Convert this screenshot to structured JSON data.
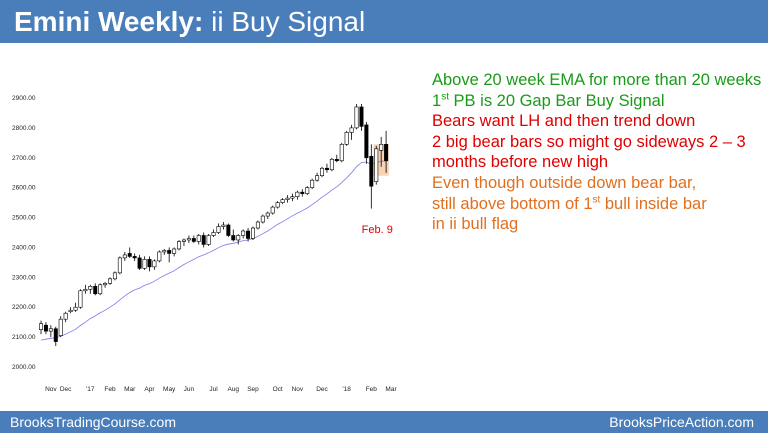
{
  "title": {
    "bold": "Emini Weekly:",
    "rest": "ii Buy Signal"
  },
  "colors": {
    "banner": "#4a7ebb",
    "green_text": "#1a9a1a",
    "red_text": "#e00000",
    "orange_text": "#e07020",
    "ema_line": "#7b7bf0",
    "bull_candle": "#ffffff",
    "bear_candle": "#000000",
    "highlight_box": "#f6d2b6"
  },
  "notes": [
    {
      "parts": [
        "Above 20 week EMA for more than 20 weeks"
      ],
      "color": "green"
    },
    {
      "parts": [
        "1",
        "st",
        " PB is 20 Gap Bar Buy Signal"
      ],
      "color": "green"
    },
    {
      "parts": [
        "Bears want LH and then trend down"
      ],
      "color": "red"
    },
    {
      "parts": [
        "2 big bear bars so might go sideways 2 – 3"
      ],
      "color": "red"
    },
    {
      "parts": [
        "months before new high"
      ],
      "color": "red"
    },
    {
      "parts": [
        "Even though outside down bear bar,"
      ],
      "color": "orange"
    },
    {
      "parts": [
        "still above bottom of 1",
        "st",
        " bull inside bar"
      ],
      "color": "orange"
    },
    {
      "parts": [
        "in ii bull flag"
      ],
      "color": "orange"
    }
  ],
  "footer": {
    "left": "BrooksTradingCourse.com",
    "right": "BrooksPriceAction.com"
  },
  "chart_data": {
    "type": "candlestick",
    "title": "",
    "xlabel": "",
    "ylabel": "",
    "ylim": [
      2000,
      2900
    ],
    "yticks": [
      "2000.00",
      "2100.00",
      "2200.00",
      "2300.00",
      "2400.00",
      "2500.00",
      "2600.00",
      "2700.00",
      "2800.00",
      "2900.00"
    ],
    "xticks": [
      {
        "label": "Nov",
        "index": 2
      },
      {
        "label": "Dec",
        "index": 5
      },
      {
        "label": "'17",
        "index": 10
      },
      {
        "label": "Feb",
        "index": 14
      },
      {
        "label": "Mar",
        "index": 18
      },
      {
        "label": "Apr",
        "index": 22
      },
      {
        "label": "May",
        "index": 26
      },
      {
        "label": "Jun",
        "index": 30
      },
      {
        "label": "Jul",
        "index": 35
      },
      {
        "label": "Aug",
        "index": 39
      },
      {
        "label": "Sep",
        "index": 43
      },
      {
        "label": "Oct",
        "index": 48
      },
      {
        "label": "Nov",
        "index": 52
      },
      {
        "label": "Dec",
        "index": 57
      },
      {
        "label": "'18",
        "index": 62
      },
      {
        "label": "Feb",
        "index": 67
      },
      {
        "label": "Mar",
        "index": 71
      }
    ],
    "grid": false,
    "legend": "none",
    "annotation": {
      "text": "Feb. 9",
      "index": 68
    },
    "highlight": {
      "from_index": 68,
      "to_index": 70,
      "price_top": 2745,
      "price_bottom": 2640
    },
    "candles": [
      {
        "o": 2125,
        "h": 2155,
        "l": 2110,
        "c": 2145
      },
      {
        "o": 2140,
        "h": 2150,
        "l": 2110,
        "c": 2120
      },
      {
        "o": 2120,
        "h": 2140,
        "l": 2100,
        "c": 2128
      },
      {
        "o": 2128,
        "h": 2135,
        "l": 2070,
        "c": 2085
      },
      {
        "o": 2105,
        "h": 2170,
        "l": 2100,
        "c": 2160
      },
      {
        "o": 2160,
        "h": 2185,
        "l": 2150,
        "c": 2180
      },
      {
        "o": 2185,
        "h": 2200,
        "l": 2180,
        "c": 2190
      },
      {
        "o": 2190,
        "h": 2215,
        "l": 2185,
        "c": 2200
      },
      {
        "o": 2200,
        "h": 2260,
        "l": 2195,
        "c": 2255
      },
      {
        "o": 2255,
        "h": 2275,
        "l": 2245,
        "c": 2260
      },
      {
        "o": 2260,
        "h": 2275,
        "l": 2245,
        "c": 2270
      },
      {
        "o": 2270,
        "h": 2280,
        "l": 2240,
        "c": 2245
      },
      {
        "o": 2245,
        "h": 2280,
        "l": 2240,
        "c": 2275
      },
      {
        "o": 2275,
        "h": 2285,
        "l": 2265,
        "c": 2280
      },
      {
        "o": 2280,
        "h": 2300,
        "l": 2275,
        "c": 2295
      },
      {
        "o": 2295,
        "h": 2320,
        "l": 2290,
        "c": 2315
      },
      {
        "o": 2315,
        "h": 2370,
        "l": 2310,
        "c": 2365
      },
      {
        "o": 2365,
        "h": 2385,
        "l": 2355,
        "c": 2375
      },
      {
        "o": 2380,
        "h": 2400,
        "l": 2365,
        "c": 2370
      },
      {
        "o": 2370,
        "h": 2380,
        "l": 2355,
        "c": 2365
      },
      {
        "o": 2365,
        "h": 2375,
        "l": 2325,
        "c": 2330
      },
      {
        "o": 2330,
        "h": 2370,
        "l": 2325,
        "c": 2360
      },
      {
        "o": 2360,
        "h": 2370,
        "l": 2320,
        "c": 2335
      },
      {
        "o": 2335,
        "h": 2360,
        "l": 2325,
        "c": 2355
      },
      {
        "o": 2355,
        "h": 2390,
        "l": 2350,
        "c": 2385
      },
      {
        "o": 2385,
        "h": 2395,
        "l": 2375,
        "c": 2390
      },
      {
        "o": 2390,
        "h": 2400,
        "l": 2350,
        "c": 2380
      },
      {
        "o": 2380,
        "h": 2400,
        "l": 2370,
        "c": 2395
      },
      {
        "o": 2395,
        "h": 2425,
        "l": 2390,
        "c": 2420
      },
      {
        "o": 2420,
        "h": 2430,
        "l": 2405,
        "c": 2425
      },
      {
        "o": 2425,
        "h": 2440,
        "l": 2415,
        "c": 2430
      },
      {
        "o": 2430,
        "h": 2440,
        "l": 2415,
        "c": 2420
      },
      {
        "o": 2420,
        "h": 2445,
        "l": 2410,
        "c": 2440
      },
      {
        "o": 2440,
        "h": 2450,
        "l": 2400,
        "c": 2410
      },
      {
        "o": 2410,
        "h": 2445,
        "l": 2405,
        "c": 2440
      },
      {
        "o": 2440,
        "h": 2460,
        "l": 2435,
        "c": 2450
      },
      {
        "o": 2450,
        "h": 2480,
        "l": 2445,
        "c": 2470
      },
      {
        "o": 2470,
        "h": 2485,
        "l": 2460,
        "c": 2475
      },
      {
        "o": 2475,
        "h": 2480,
        "l": 2435,
        "c": 2440
      },
      {
        "o": 2440,
        "h": 2460,
        "l": 2420,
        "c": 2425
      },
      {
        "o": 2425,
        "h": 2445,
        "l": 2410,
        "c": 2440
      },
      {
        "o": 2440,
        "h": 2460,
        "l": 2430,
        "c": 2455
      },
      {
        "o": 2455,
        "h": 2465,
        "l": 2420,
        "c": 2430
      },
      {
        "o": 2430,
        "h": 2470,
        "l": 2425,
        "c": 2465
      },
      {
        "o": 2465,
        "h": 2490,
        "l": 2460,
        "c": 2485
      },
      {
        "o": 2485,
        "h": 2510,
        "l": 2480,
        "c": 2505
      },
      {
        "o": 2505,
        "h": 2520,
        "l": 2495,
        "c": 2515
      },
      {
        "o": 2515,
        "h": 2540,
        "l": 2510,
        "c": 2535
      },
      {
        "o": 2535,
        "h": 2555,
        "l": 2530,
        "c": 2550
      },
      {
        "o": 2550,
        "h": 2565,
        "l": 2545,
        "c": 2560
      },
      {
        "o": 2560,
        "h": 2575,
        "l": 2550,
        "c": 2565
      },
      {
        "o": 2565,
        "h": 2580,
        "l": 2555,
        "c": 2570
      },
      {
        "o": 2570,
        "h": 2590,
        "l": 2560,
        "c": 2585
      },
      {
        "o": 2585,
        "h": 2595,
        "l": 2570,
        "c": 2580
      },
      {
        "o": 2580,
        "h": 2605,
        "l": 2575,
        "c": 2600
      },
      {
        "o": 2600,
        "h": 2630,
        "l": 2595,
        "c": 2625
      },
      {
        "o": 2625,
        "h": 2650,
        "l": 2620,
        "c": 2640
      },
      {
        "o": 2640,
        "h": 2670,
        "l": 2635,
        "c": 2665
      },
      {
        "o": 2665,
        "h": 2680,
        "l": 2650,
        "c": 2660
      },
      {
        "o": 2660,
        "h": 2700,
        "l": 2655,
        "c": 2695
      },
      {
        "o": 2695,
        "h": 2710,
        "l": 2685,
        "c": 2690
      },
      {
        "o": 2690,
        "h": 2750,
        "l": 2685,
        "c": 2745
      },
      {
        "o": 2745,
        "h": 2790,
        "l": 2740,
        "c": 2785
      },
      {
        "o": 2785,
        "h": 2810,
        "l": 2760,
        "c": 2800
      },
      {
        "o": 2800,
        "h": 2880,
        "l": 2795,
        "c": 2870
      },
      {
        "o": 2870,
        "h": 2880,
        "l": 2790,
        "c": 2805
      },
      {
        "o": 2810,
        "h": 2820,
        "l": 2680,
        "c": 2700
      },
      {
        "o": 2705,
        "h": 2745,
        "l": 2530,
        "c": 2605
      },
      {
        "o": 2620,
        "h": 2740,
        "l": 2610,
        "c": 2730
      },
      {
        "o": 2725,
        "h": 2770,
        "l": 2670,
        "c": 2745
      },
      {
        "o": 2745,
        "h": 2790,
        "l": 2650,
        "c": 2690
      }
    ],
    "ema": [
      2090,
      2093,
      2096,
      2098,
      2103,
      2110,
      2118,
      2126,
      2139,
      2150,
      2162,
      2171,
      2181,
      2190,
      2200,
      2211,
      2225,
      2238,
      2249,
      2258,
      2264,
      2273,
      2279,
      2287,
      2297,
      2306,
      2314,
      2322,
      2333,
      2343,
      2352,
      2360,
      2369,
      2375,
      2382,
      2390,
      2399,
      2407,
      2411,
      2414,
      2418,
      2423,
      2425,
      2430,
      2437,
      2446,
      2455,
      2466,
      2477,
      2486,
      2496,
      2506,
      2515,
      2523,
      2532,
      2543,
      2555,
      2568,
      2579,
      2592,
      2603,
      2617,
      2633,
      2650,
      2670,
      2684,
      2686,
      2678,
      2683,
      2689,
      2689
    ]
  }
}
